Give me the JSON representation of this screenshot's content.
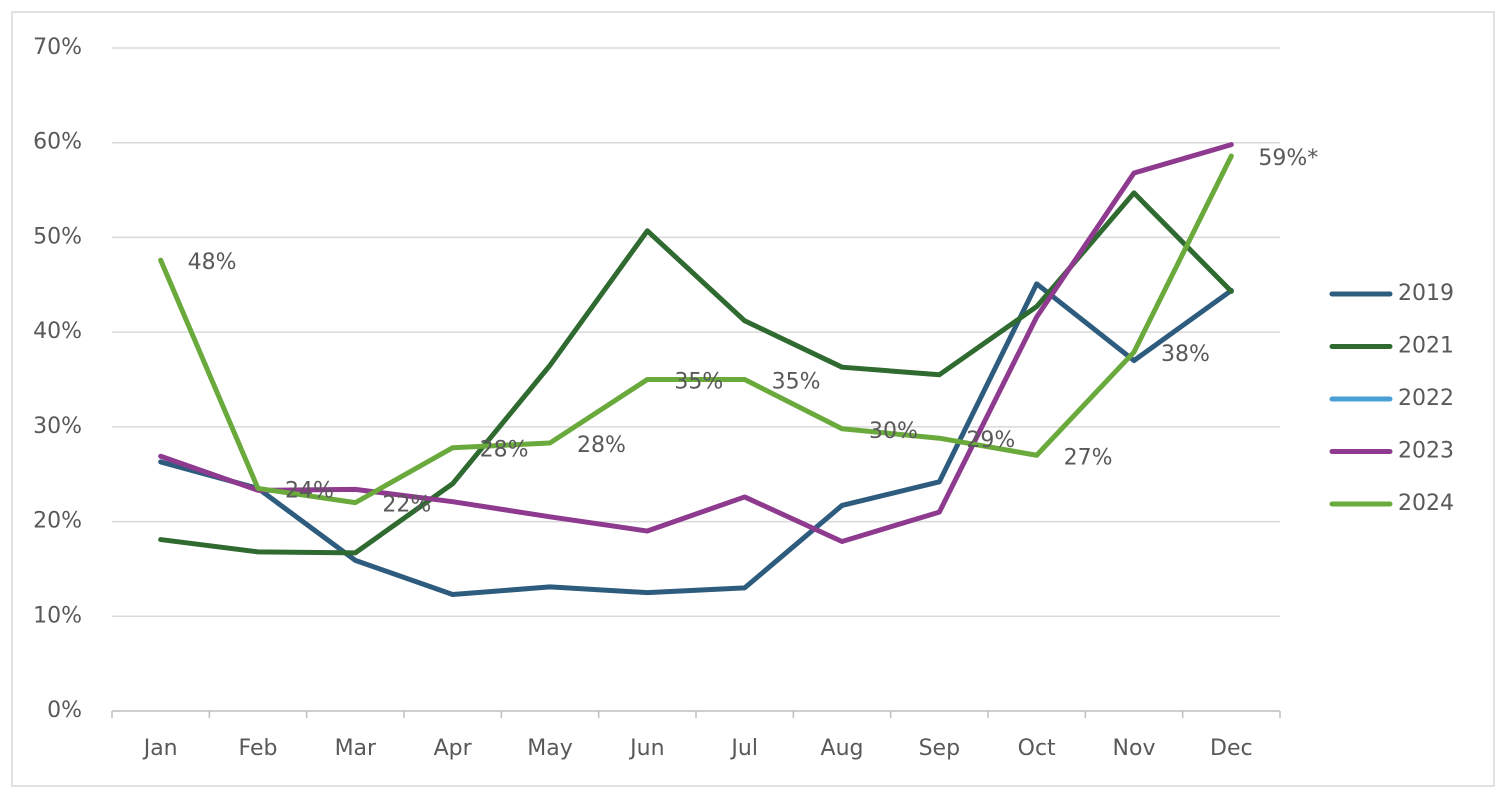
{
  "chart_data": {
    "type": "line",
    "categories": [
      "Jan",
      "Feb",
      "Mar",
      "Apr",
      "May",
      "Jun",
      "Jul",
      "Aug",
      "Sep",
      "Oct",
      "Nov",
      "Dec"
    ],
    "series": [
      {
        "name": "2019",
        "color": "#2e5c7e",
        "values": [
          26.3,
          23.5,
          15.9,
          12.3,
          13.1,
          12.5,
          13.0,
          21.7,
          24.2,
          45.1,
          37.0,
          44.4
        ]
      },
      {
        "name": "2021",
        "color": "#2f6a30",
        "values": [
          18.1,
          16.8,
          16.7,
          24.0,
          36.5,
          50.7,
          41.2,
          36.3,
          35.5,
          42.7,
          54.7,
          44.3
        ]
      },
      {
        "name": "2022",
        "color": "#4a9fd4",
        "values": [
          null,
          null,
          null,
          null,
          null,
          null,
          null,
          null,
          null,
          null,
          null,
          null
        ]
      },
      {
        "name": "2023",
        "color": "#8e3a8e",
        "values": [
          26.9,
          23.3,
          23.4,
          22.1,
          20.5,
          19.0,
          22.6,
          17.9,
          21.0,
          41.6,
          56.8,
          59.8
        ]
      },
      {
        "name": "2024",
        "color": "#6aaa3c",
        "values": [
          47.6,
          23.5,
          22.0,
          27.8,
          28.3,
          35.0,
          35.0,
          29.8,
          28.8,
          27.0,
          37.9,
          58.6
        ],
        "value_labels": [
          "48%",
          "24%",
          "22%",
          "28%",
          "28%",
          "35%",
          "35%",
          "30%",
          "29%",
          "27%",
          "38%",
          "59%*"
        ]
      }
    ],
    "ylim": [
      0,
      70
    ],
    "yticks": [
      {
        "value": 0,
        "label": "0%"
      },
      {
        "value": 10,
        "label": "10%"
      },
      {
        "value": 20,
        "label": "20%"
      },
      {
        "value": 30,
        "label": "30%"
      },
      {
        "value": 40,
        "label": "40%"
      },
      {
        "value": 50,
        "label": "50%"
      },
      {
        "value": 60,
        "label": "60%"
      },
      {
        "value": 70,
        "label": "70%"
      }
    ],
    "grid": true,
    "legend": "right"
  }
}
